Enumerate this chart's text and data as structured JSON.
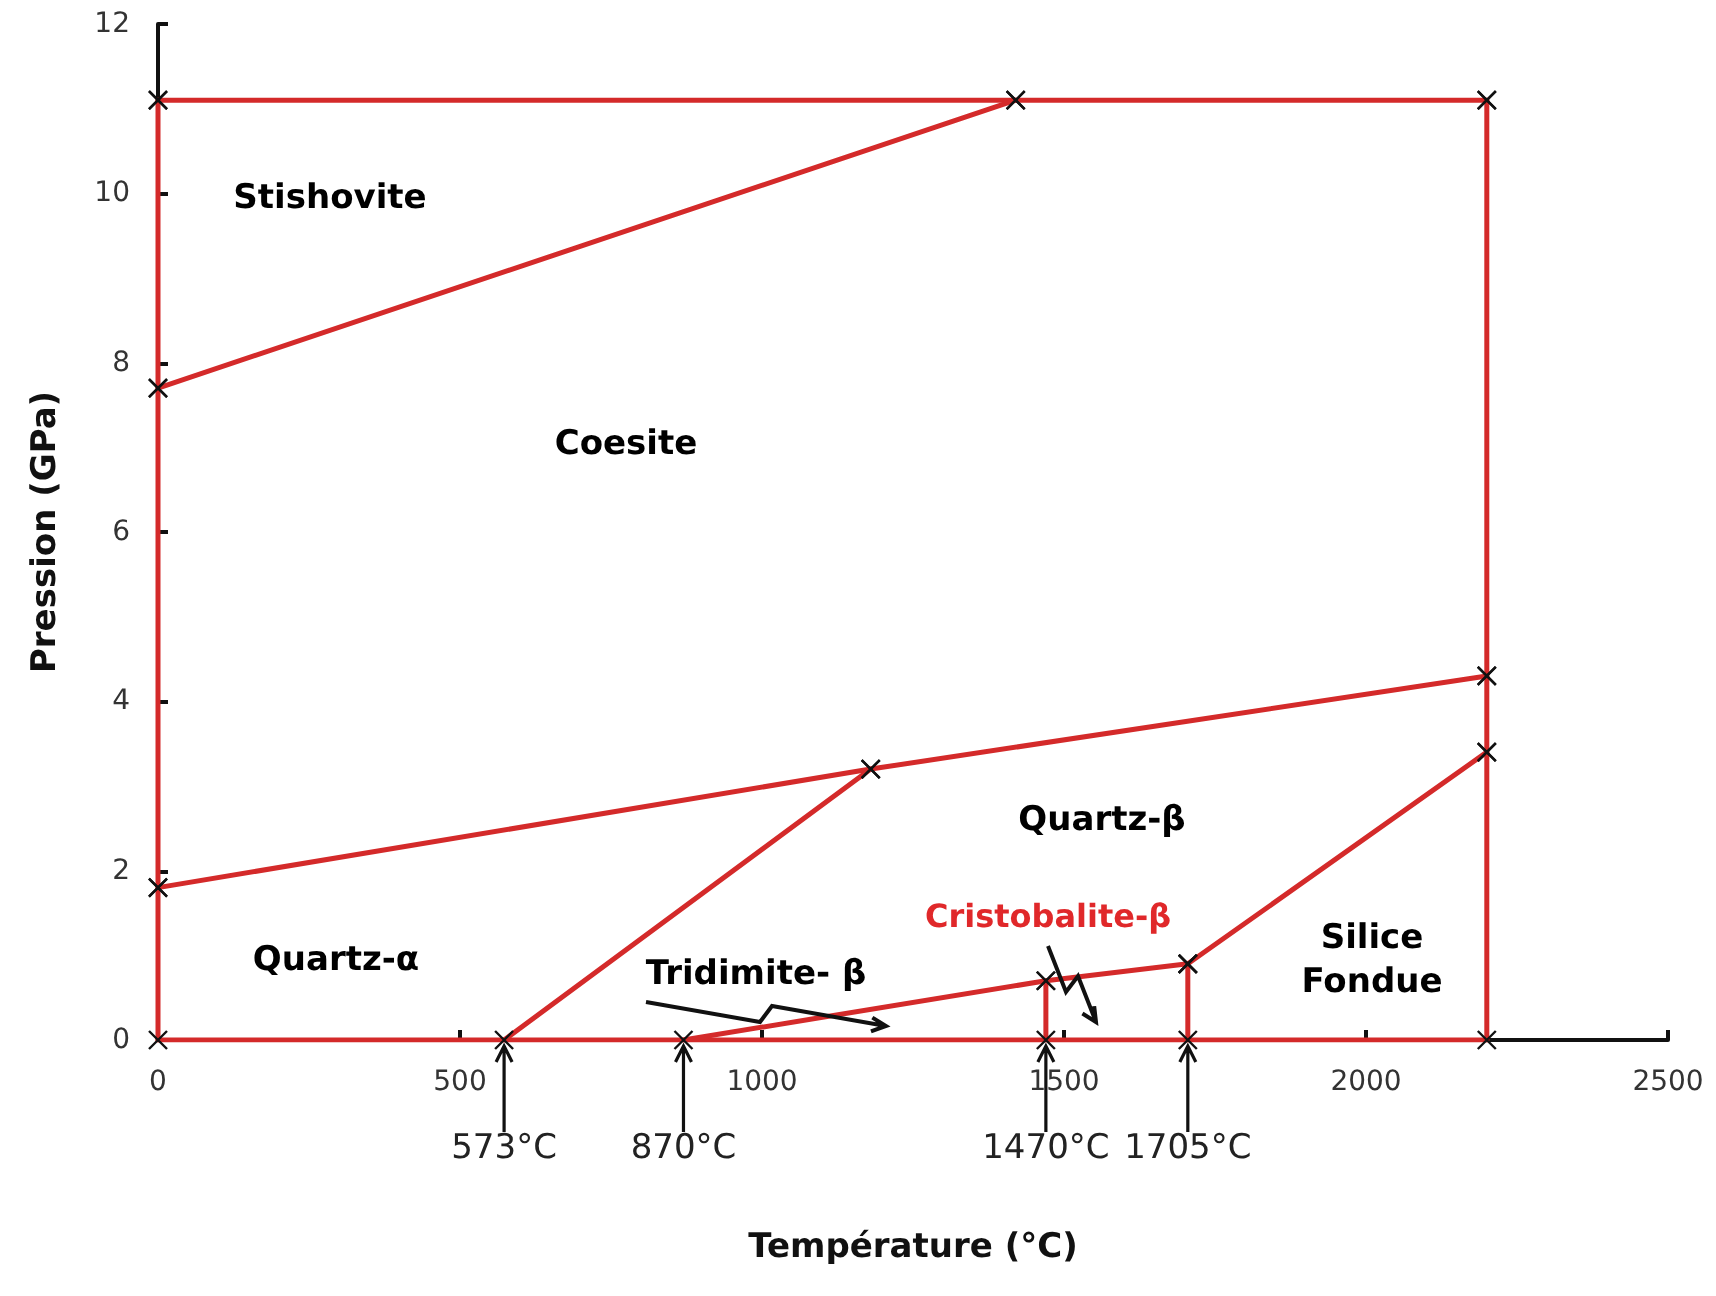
{
  "chart_data": {
    "type": "line",
    "xlabel": "Température (°C)",
    "ylabel": "Pression (GPa)",
    "xlim": [
      0,
      2500
    ],
    "xticks": [
      0,
      500,
      1000,
      1500,
      2000,
      2500
    ],
    "ylim": [
      0,
      12
    ],
    "yticks": [
      0,
      2,
      4,
      6,
      8,
      10,
      12
    ],
    "grid": false,
    "marker": "cross",
    "line_style": "solid",
    "series": [
      {
        "color": "#d42a2a",
        "marker": "none",
        "x": [
          0,
          573,
          870,
          1470,
          1705,
          2200
        ],
        "values": [
          0,
          0,
          0,
          0,
          0,
          0
        ]
      },
      {
        "color": "#d42a2a",
        "x": [
          0,
          1420,
          2200
        ],
        "values": [
          11.1,
          11.1,
          11.1
        ]
      },
      {
        "color": "#d42a2a",
        "x": [
          0,
          1420
        ],
        "values": [
          7.7,
          11.1
        ]
      },
      {
        "color": "#d42a2a",
        "x": [
          0,
          1180,
          2200
        ],
        "values": [
          1.8,
          3.2,
          4.3
        ]
      },
      {
        "color": "#d42a2a",
        "x": [
          573,
          1180
        ],
        "values": [
          0,
          3.2
        ]
      },
      {
        "color": "#d42a2a",
        "x": [
          870,
          1470,
          1705
        ],
        "values": [
          0,
          0.7,
          0.9
        ]
      },
      {
        "color": "#d42a2a",
        "x": [
          1705,
          2200
        ],
        "values": [
          0.9,
          3.4
        ]
      },
      {
        "color": "#d42a2a",
        "x": [
          1470,
          1470
        ],
        "values": [
          0,
          0.7
        ]
      },
      {
        "color": "#d42a2a",
        "x": [
          1705,
          1705
        ],
        "values": [
          0,
          0.9
        ]
      },
      {
        "color": "#d42a2a",
        "x": [
          0,
          0,
          0,
          0
        ],
        "values": [
          0,
          1.8,
          7.7,
          11.1
        ]
      },
      {
        "color": "#d42a2a",
        "x": [
          2200,
          2200,
          2200,
          2200
        ],
        "values": [
          0,
          3.4,
          4.3,
          11.1
        ]
      }
    ],
    "annotations": [
      "Stishovite",
      "Coesite",
      "Quartz-α",
      "Quartz-β",
      "Tridimite- β",
      "Cristobalite-β",
      "Silice\nFondue",
      {
        "text": "573°C",
        "x": 573,
        "y": 0
      },
      {
        "text": "870°C",
        "x": 870,
        "y": 0
      },
      {
        "text": "1470°C",
        "x": 1470,
        "y": 0
      },
      {
        "text": "1705°C",
        "x": 1705,
        "y": 0
      }
    ]
  }
}
